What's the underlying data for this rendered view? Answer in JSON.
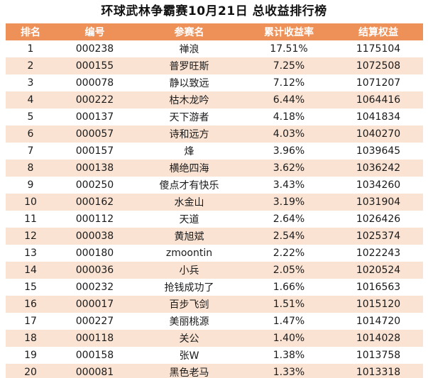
{
  "title": "环球武林争霸赛10月21日 总收益排行榜",
  "columns": {
    "rank": "排名",
    "id": "编号",
    "name": "参赛名",
    "return": "累计收益率",
    "equity": "结算权益"
  },
  "colors": {
    "header_bg": "#ee9159",
    "header_text": "#ffffff",
    "stripe_bg": "#fbe3d3"
  },
  "rows": [
    {
      "rank": "1",
      "id": "000238",
      "name": "禅浪",
      "return": "17.51%",
      "equity": "1175104"
    },
    {
      "rank": "2",
      "id": "000155",
      "name": "普罗旺斯",
      "return": "7.25%",
      "equity": "1072508"
    },
    {
      "rank": "3",
      "id": "000078",
      "name": "静以致远",
      "return": "7.12%",
      "equity": "1071207"
    },
    {
      "rank": "4",
      "id": "000222",
      "name": "枯木龙吟",
      "return": "6.44%",
      "equity": "1064416"
    },
    {
      "rank": "5",
      "id": "000137",
      "name": "天下游者",
      "return": "4.18%",
      "equity": "1041834"
    },
    {
      "rank": "6",
      "id": "000057",
      "name": "诗和远方",
      "return": "4.03%",
      "equity": "1040270"
    },
    {
      "rank": "7",
      "id": "000157",
      "name": "烽",
      "return": "3.96%",
      "equity": "1039645"
    },
    {
      "rank": "8",
      "id": "000138",
      "name": "横绝四海",
      "return": "3.62%",
      "equity": "1036242"
    },
    {
      "rank": "9",
      "id": "000250",
      "name": "傻点才有快乐",
      "return": "3.43%",
      "equity": "1034260"
    },
    {
      "rank": "10",
      "id": "000162",
      "name": "水金山",
      "return": "3.19%",
      "equity": "1031904"
    },
    {
      "rank": "11",
      "id": "000112",
      "name": "天道",
      "return": "2.64%",
      "equity": "1026426"
    },
    {
      "rank": "12",
      "id": "000038",
      "name": "黄旭斌",
      "return": "2.54%",
      "equity": "1025374"
    },
    {
      "rank": "13",
      "id": "000180",
      "name": "zmoontin",
      "return": "2.22%",
      "equity": "1022243"
    },
    {
      "rank": "14",
      "id": "000036",
      "name": "小兵",
      "return": "2.05%",
      "equity": "1020524"
    },
    {
      "rank": "15",
      "id": "000232",
      "name": "抢钱成功了",
      "return": "1.66%",
      "equity": "1016563"
    },
    {
      "rank": "16",
      "id": "000017",
      "name": "百步飞剑",
      "return": "1.51%",
      "equity": "1015120"
    },
    {
      "rank": "17",
      "id": "000227",
      "name": "美丽桃源",
      "return": "1.47%",
      "equity": "1014720"
    },
    {
      "rank": "18",
      "id": "000118",
      "name": "关公",
      "return": "1.40%",
      "equity": "1014028"
    },
    {
      "rank": "19",
      "id": "000158",
      "name": "张W",
      "return": "1.38%",
      "equity": "1013758"
    },
    {
      "rank": "20",
      "id": "000081",
      "name": "黑色老马",
      "return": "1.33%",
      "equity": "1013318"
    }
  ]
}
